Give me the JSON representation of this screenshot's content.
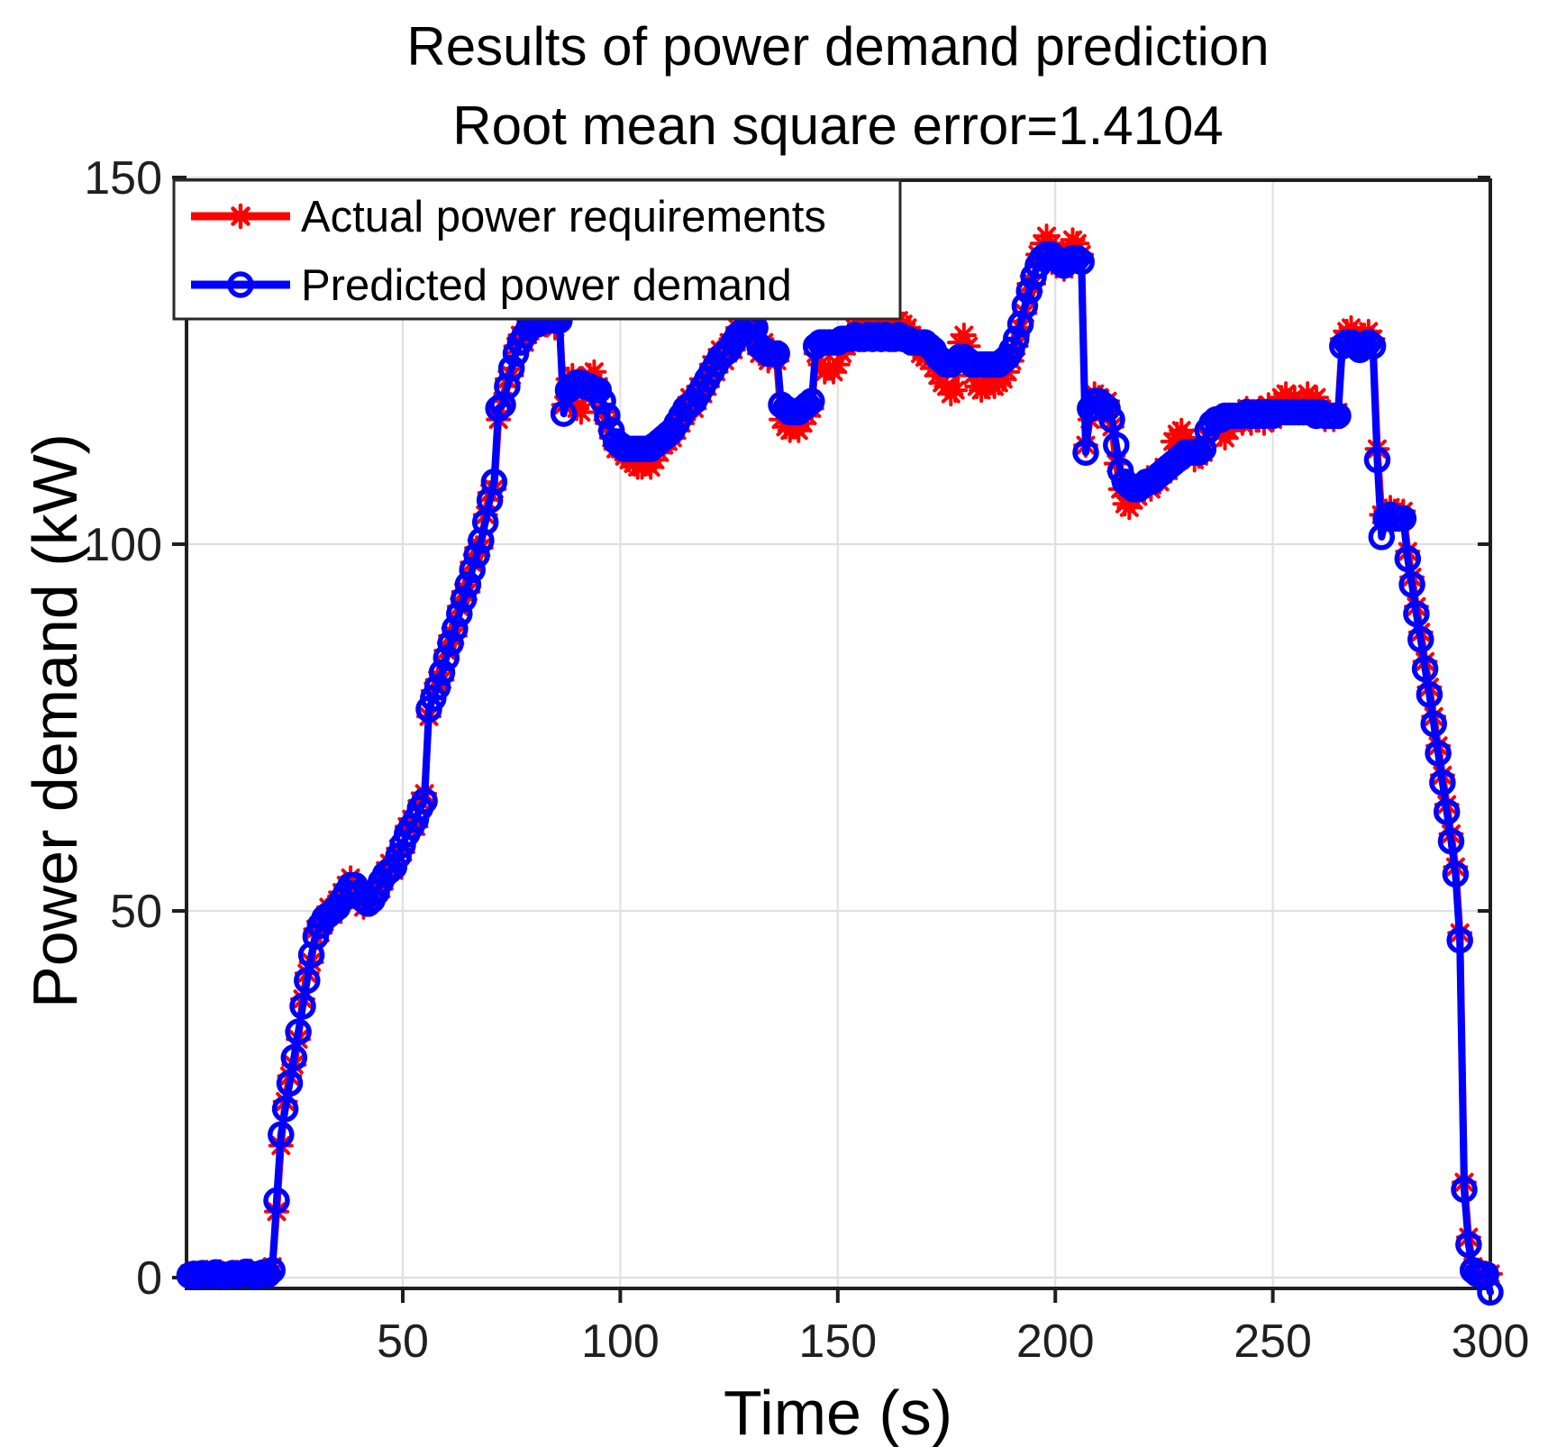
{
  "figure": {
    "title": "Results of power demand prediction",
    "subtitle": "Root mean square error=1.4104"
  },
  "axes": {
    "x": {
      "label": "Time（s）",
      "ticks": [
        50,
        100,
        150,
        200,
        250,
        300
      ],
      "min": 0,
      "max": 300
    },
    "y": {
      "label": "Power demand（kW）",
      "ticks": [
        0,
        50,
        100,
        150
      ],
      "min": 0,
      "max": 150
    }
  },
  "legend": {
    "items": [
      {
        "label": "Actual power requirements",
        "color": "#ff0000",
        "marker": "asterisk"
      },
      {
        "label": "Predicted power demand",
        "color": "#0000ff",
        "marker": "circle"
      }
    ]
  },
  "colors": {
    "actual": "#ff0000",
    "predicted": "#0000ff",
    "grid": "#e0e0e0",
    "frame": "#1f1f1f",
    "text": "#000000",
    "background": "#ffffff"
  },
  "chart_data": {
    "type": "line",
    "title": "Results of power demand prediction",
    "subtitle": "Root mean square error=1.4104",
    "xlabel": "Time（s）",
    "ylabel": "Power demand（kW）",
    "xlim": [
      0,
      300
    ],
    "ylim": [
      0,
      150
    ],
    "grid": true,
    "legend_position": "northwest",
    "rmse": 1.4104,
    "x_start": 1,
    "x_step": 1,
    "series": [
      {
        "name": "Actual power requirements",
        "color": "#ff0000",
        "marker": "asterisk",
        "values": [
          0.5,
          0.2,
          0.6,
          0.3,
          0.7,
          0.5,
          0.3,
          0.8,
          0.4,
          0.2,
          0.5,
          0.7,
          0.3,
          0.5,
          0.9,
          0.3,
          0.6,
          0.4,
          0.6,
          1.5,
          9,
          18,
          24,
          27.5,
          29,
          32.5,
          38,
          41.5,
          43,
          47.5,
          47,
          48.5,
          50.5,
          49.5,
          51.5,
          52.5,
          53.5,
          54.5,
          52.5,
          51.5,
          50.5,
          51.5,
          52.5,
          53,
          53,
          55.5,
          56.5,
          55.5,
          58.5,
          58,
          61.5,
          62.5,
          61.5,
          65,
          66,
          76.5,
          80,
          81.5,
          81.5,
          85.5,
          87.5,
          87.5,
          91.5,
          93.5,
          93.5,
          97.5,
          99.5,
          99.5,
          104,
          107,
          107.5,
          117,
          119.5,
          122.5,
          123,
          127,
          128.5,
          127.5,
          130.5,
          131,
          129.5,
          131.5,
          130,
          131.5,
          129.5,
          131,
          119,
          122.5,
          123,
          118.5,
          118,
          121,
          123,
          123.5,
          121.5,
          118,
          116.5,
          114.5,
          113,
          113,
          112,
          111.5,
          111,
          110.5,
          110.5,
          111,
          110.5,
          111.5,
          112.5,
          113.5,
          114,
          114.5,
          115.5,
          116.5,
          117.5,
          120,
          118.5,
          121.5,
          120.5,
          121.5,
          124.5,
          123.5,
          126.5,
          125,
          127.5,
          126.5,
          129.5,
          128,
          130.5,
          128.5,
          130,
          126,
          127.5,
          125,
          126.5,
          125,
          117,
          116,
          115.5,
          116,
          115.5,
          116.5,
          117.5,
          118.5,
          126,
          124.5,
          123.5,
          124,
          123.5,
          124.5,
          126,
          127,
          128.5,
          129.5,
          130,
          130.5,
          130,
          130.5,
          130,
          130.5,
          130,
          129.5,
          130,
          130.5,
          130,
          129.5,
          128.5,
          127,
          126,
          125.5,
          125,
          124,
          123,
          122,
          121.5,
          120.5,
          121,
          127.5,
          128.5,
          127,
          123,
          121.5,
          121,
          121.5,
          122,
          121.5,
          122,
          122.5,
          123.5,
          125,
          127,
          129.5,
          131.5,
          135.5,
          135.5,
          139.5,
          141,
          142,
          141,
          140,
          138,
          137.5,
          140,
          141.5,
          141,
          139.5,
          113.5,
          117,
          120.5,
          120,
          118,
          119.5,
          116,
          111,
          107.5,
          105.5,
          105,
          106,
          106.5,
          107.5,
          108,
          107.5,
          109.5,
          108.5,
          110.5,
          110,
          114,
          115,
          115.5,
          114.5,
          113.5,
          111.5,
          112,
          112.5,
          114.5,
          115.5,
          116.5,
          115,
          114.5,
          115.5,
          116.5,
          117,
          116.5,
          118.5,
          116.5,
          117.5,
          118.5,
          116.5,
          119,
          117,
          118.5,
          120,
          120.5,
          119.5,
          120,
          119,
          118.5,
          120.5,
          119.5,
          120,
          118.5,
          117,
          118,
          117,
          118,
          128,
          129,
          129.5,
          128.5,
          128,
          128.5,
          129,
          128,
          113,
          104,
          104.5,
          105,
          104.5,
          104,
          104.5,
          99,
          95.5,
          91.5,
          88,
          84,
          80.5,
          76.5,
          72.5,
          68.5,
          64.5,
          60.5,
          56,
          47,
          13,
          5.5,
          1.5,
          1,
          0.8,
          0.6,
          0.5
        ]
      },
      {
        "name": "Predicted power demand",
        "color": "#0000ff",
        "marker": "circle",
        "values": [
          0.3,
          0.5,
          0.2,
          0.6,
          0.4,
          0.3,
          0.7,
          0.5,
          0.2,
          0.4,
          0.6,
          0.3,
          0.5,
          0.8,
          0.4,
          0.2,
          0.5,
          0.7,
          0.4,
          1,
          10.5,
          19.5,
          23,
          26.5,
          30,
          33.5,
          37,
          40.5,
          44,
          46.5,
          48,
          49,
          49.5,
          50,
          50.5,
          51.5,
          52.5,
          53.5,
          53.5,
          52.5,
          51.5,
          51,
          51.5,
          52.5,
          54,
          55,
          55.5,
          56,
          57.5,
          59,
          60.5,
          61.5,
          62.5,
          64,
          65,
          77.5,
          79,
          80.5,
          82.5,
          84.5,
          86.5,
          88.5,
          90.5,
          92.5,
          94.5,
          96.5,
          98.5,
          100.5,
          103,
          106,
          108.5,
          118.5,
          119,
          121.5,
          124,
          126,
          127.5,
          128.5,
          129.5,
          130,
          130,
          130.5,
          130.5,
          130.5,
          130.5,
          130.5,
          117.8,
          121,
          121.5,
          122,
          122,
          121.5,
          121.5,
          121,
          121,
          119.5,
          117.5,
          115.5,
          114,
          113.5,
          113,
          113,
          113,
          113,
          113,
          113,
          113,
          113.5,
          114,
          114.5,
          115,
          115.5,
          116.5,
          117.5,
          118.5,
          119,
          119.5,
          120.5,
          121.5,
          122.5,
          123.5,
          124.5,
          125.5,
          126,
          126.5,
          127.5,
          128.5,
          129,
          129.5,
          129.5,
          129.5,
          127,
          126.5,
          126,
          126,
          126,
          119,
          118.5,
          118,
          118,
          118,
          118.5,
          119,
          119.5,
          127,
          127.5,
          127.5,
          127.5,
          127.5,
          127.5,
          128,
          128,
          128,
          128.5,
          128,
          128,
          128.5,
          128,
          128.5,
          128,
          128.5,
          128,
          128,
          128.5,
          128,
          128,
          127.5,
          127.5,
          127.5,
          127.5,
          127,
          126.5,
          125.5,
          125,
          124.5,
          124.5,
          125,
          125.5,
          125.5,
          125,
          124.5,
          124.5,
          124.5,
          124.5,
          124.5,
          124.5,
          124.5,
          125,
          125.5,
          126.5,
          128,
          130,
          132.5,
          134.5,
          136.5,
          138,
          139,
          139.5,
          139.5,
          139,
          138.5,
          138,
          138.5,
          139,
          139,
          138.5,
          112.5,
          118.5,
          119.5,
          119.5,
          119,
          118.5,
          117,
          113.5,
          110,
          108.5,
          108,
          107.5,
          107.5,
          108,
          108.5,
          108.5,
          109,
          109.5,
          110,
          110.5,
          111,
          111.5,
          112,
          112.5,
          112.5,
          112.5,
          112.5,
          113,
          115.5,
          116.5,
          117,
          117,
          117.5,
          117.5,
          117.5,
          117.5,
          117.5,
          118,
          117.5,
          117.5,
          118,
          117.5,
          118,
          117.5,
          118,
          118,
          118,
          118,
          118,
          118,
          118,
          118,
          118,
          117.5,
          118,
          117.5,
          117.5,
          117.5,
          117.5,
          127,
          127.5,
          127.5,
          127,
          126.5,
          127,
          127.5,
          127,
          111.5,
          101,
          103.5,
          104,
          103.5,
          103.5,
          103.5,
          98,
          94.5,
          90.5,
          87,
          83,
          79.5,
          75.5,
          71.5,
          67.5,
          63.5,
          59.5,
          55,
          46,
          12,
          4.5,
          1,
          0.5,
          0.5,
          0.4,
          -2
        ]
      }
    ]
  }
}
